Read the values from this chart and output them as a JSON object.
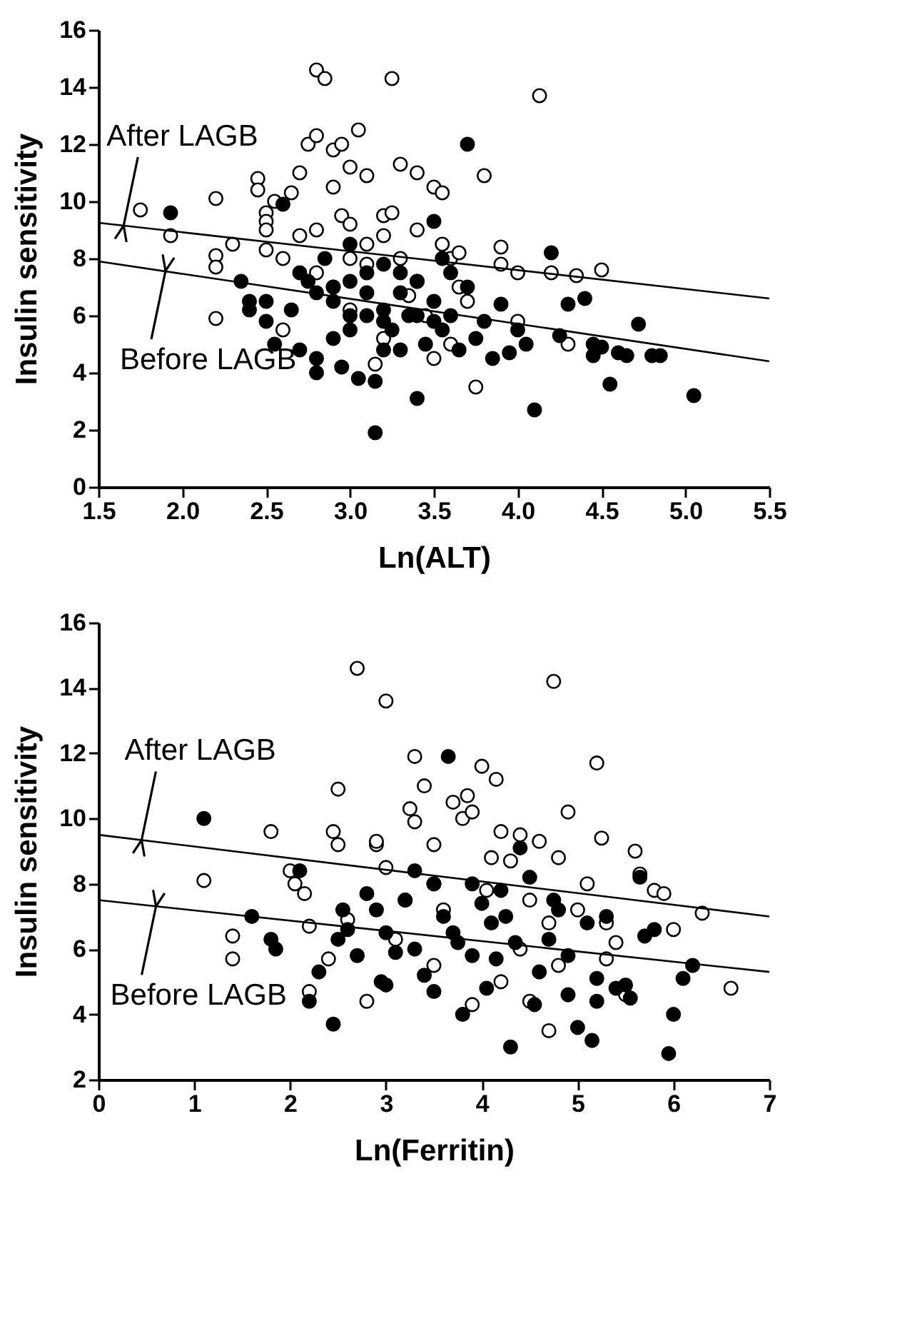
{
  "chart_data": [
    {
      "type": "scatter",
      "xlabel": "Ln(ALT)",
      "ylabel": "Insulin sensitivity",
      "xlim": [
        1.5,
        5.5
      ],
      "xticks": [
        1.5,
        {
          "value": 2,
          "label": "2.0"
        },
        2.5,
        {
          "value": 3,
          "label": "3.0"
        },
        3.5,
        {
          "value": 4,
          "label": "4.0"
        },
        4.5,
        {
          "value": 5,
          "label": "5.0"
        },
        5.5
      ],
      "ylim": [
        0,
        16
      ],
      "yticks": [
        0,
        2,
        4,
        6,
        8,
        10,
        12,
        14,
        16
      ],
      "marker": "circle",
      "series": [
        {
          "color": "#ffffff",
          "x": [
            1.75,
            1.93,
            2.2,
            2.2,
            2.2,
            2.2,
            2.3,
            2.45,
            2.45,
            2.5,
            2.5,
            2.5,
            2.5,
            2.55,
            2.6,
            2.6,
            2.65,
            2.7,
            2.75,
            2.8,
            2.8,
            2.85,
            2.9,
            2.9,
            2.95,
            2.95,
            3.0,
            3.0,
            3.05,
            3.1,
            3.1,
            3.15,
            3.2,
            3.2,
            3.25,
            3.25,
            3.3,
            3.35,
            3.4,
            3.4,
            3.5,
            3.55,
            3.55,
            3.6,
            3.65,
            3.65,
            3.7,
            3.75,
            3.8,
            3.9,
            3.9,
            4.0,
            4.0,
            4.13,
            4.2,
            4.35,
            4.5,
            2.8,
            2.9,
            3.0,
            3.1,
            3.2,
            3.3,
            3.4,
            3.45,
            3.5,
            2.7,
            2.8,
            3.0,
            3.6,
            4.3
          ],
          "values": [
            9.7,
            8.8,
            10.1,
            8.1,
            7.7,
            5.9,
            8.5,
            10.8,
            10.4,
            9.6,
            9.3,
            9.0,
            8.3,
            10.0,
            8.0,
            5.5,
            10.3,
            11.0,
            12.0,
            12.3,
            14.6,
            14.3,
            11.8,
            10.5,
            12.0,
            9.5,
            11.2,
            9.2,
            12.5,
            10.9,
            8.5,
            4.3,
            9.5,
            8.8,
            14.3,
            9.6,
            11.3,
            6.7,
            11.0,
            9.0,
            10.5,
            10.3,
            8.5,
            8.0,
            8.2,
            7.0,
            6.5,
            3.5,
            10.9,
            8.4,
            7.8,
            7.5,
            5.8,
            13.7,
            7.5,
            7.4,
            7.6,
            7.5,
            7.0,
            6.2,
            7.8,
            5.2,
            8.0,
            7.2,
            6.0,
            4.5,
            8.8,
            9.0,
            8.0,
            5.0,
            5.0
          ]
        },
        {
          "color": "#000000",
          "x": [
            1.93,
            2.35,
            2.4,
            2.4,
            2.5,
            2.5,
            2.55,
            2.6,
            2.65,
            2.7,
            2.75,
            2.8,
            2.8,
            2.85,
            2.9,
            2.9,
            2.95,
            3.0,
            3.0,
            3.0,
            3.05,
            3.1,
            3.1,
            3.15,
            3.15,
            3.2,
            3.2,
            3.25,
            3.3,
            3.3,
            3.35,
            3.4,
            3.4,
            3.45,
            3.5,
            3.5,
            3.55,
            3.55,
            3.6,
            3.65,
            3.7,
            3.7,
            3.75,
            3.8,
            3.85,
            3.9,
            3.95,
            4.0,
            4.05,
            4.1,
            4.2,
            4.25,
            4.3,
            4.4,
            4.45,
            4.5,
            4.55,
            4.6,
            4.65,
            4.72,
            4.8,
            4.85,
            5.05,
            4.45,
            3.0,
            3.1,
            3.2,
            3.3,
            2.8,
            2.7,
            3.4,
            3.6,
            3.5,
            3.2,
            2.9
          ],
          "values": [
            9.6,
            7.2,
            6.5,
            6.2,
            6.5,
            5.8,
            5.0,
            9.9,
            6.2,
            4.8,
            7.2,
            4.5,
            4.0,
            8.0,
            7.0,
            6.5,
            4.2,
            8.5,
            6.0,
            5.5,
            3.8,
            7.5,
            6.8,
            1.9,
            3.7,
            7.8,
            6.2,
            5.5,
            6.8,
            4.8,
            6.0,
            3.1,
            7.2,
            5.0,
            9.3,
            6.5,
            8.0,
            5.5,
            6.0,
            4.8,
            12.0,
            7.0,
            5.2,
            5.8,
            4.5,
            6.4,
            4.7,
            5.5,
            5.0,
            2.7,
            8.2,
            5.3,
            6.4,
            6.6,
            5.0,
            4.9,
            3.6,
            4.7,
            4.6,
            5.7,
            4.6,
            4.6,
            3.2,
            4.6,
            7.2,
            6.0,
            5.8,
            7.5,
            6.8,
            7.5,
            6.0,
            7.5,
            5.8,
            4.8,
            5.2
          ]
        },
        {
          "type": "line",
          "marker": "none",
          "color": "#000000",
          "x": [
            1.5,
            5.5
          ],
          "values": [
            9.25,
            6.6
          ]
        },
        {
          "type": "line",
          "marker": "none",
          "color": "#000000",
          "x": [
            1.5,
            5.5
          ],
          "values": [
            7.9,
            4.4
          ]
        }
      ],
      "annotations": [
        {
          "text": "After LAGB",
          "x": 1.65,
          "y": 9.15
        },
        {
          "text": "Before LAGB",
          "x": 1.9,
          "y": 7.57
        }
      ]
    },
    {
      "type": "scatter",
      "xlabel": "Ln(Ferritin)",
      "ylabel": "Insulin sensitivity",
      "xlim": [
        0,
        7
      ],
      "xticks": [
        0,
        1,
        2,
        3,
        4,
        5,
        6,
        7
      ],
      "ylim": [
        2,
        16
      ],
      "yticks": [
        2,
        4,
        6,
        8,
        10,
        12,
        14,
        16
      ],
      "marker": "circle",
      "series": [
        {
          "color": "#ffffff",
          "x": [
            1.1,
            1.4,
            1.4,
            1.8,
            2.0,
            2.05,
            2.15,
            2.2,
            2.45,
            2.5,
            2.5,
            2.6,
            2.7,
            2.8,
            2.9,
            2.9,
            3.0,
            3.0,
            3.2,
            3.25,
            3.3,
            3.3,
            3.4,
            3.5,
            3.5,
            3.7,
            3.8,
            3.85,
            3.9,
            4.0,
            4.05,
            4.1,
            4.15,
            4.2,
            4.3,
            4.4,
            4.5,
            4.6,
            4.7,
            4.75,
            4.8,
            4.9,
            5.0,
            5.1,
            5.2,
            5.25,
            5.3,
            5.4,
            5.6,
            5.65,
            5.8,
            5.9,
            6.0,
            6.3,
            6.6,
            4.5,
            4.7,
            3.9,
            3.5,
            4.2,
            5.3,
            5.5,
            3.1,
            2.4,
            2.2,
            3.6,
            4.4,
            4.8
          ],
          "values": [
            8.1,
            6.4,
            5.7,
            9.6,
            8.4,
            8.0,
            7.7,
            6.7,
            9.6,
            10.9,
            9.2,
            6.9,
            14.6,
            4.4,
            9.2,
            9.3,
            13.6,
            8.5,
            7.5,
            10.3,
            11.9,
            9.9,
            11.0,
            9.2,
            8.0,
            10.5,
            10.0,
            10.7,
            10.2,
            11.6,
            7.8,
            8.8,
            11.2,
            9.6,
            8.7,
            9.5,
            7.5,
            9.3,
            6.8,
            14.2,
            8.8,
            10.2,
            7.2,
            8.0,
            11.7,
            9.4,
            6.8,
            6.2,
            9.0,
            8.3,
            7.8,
            7.7,
            6.6,
            7.1,
            4.8,
            4.4,
            3.5,
            4.3,
            5.5,
            5.0,
            5.7,
            4.6,
            6.3,
            5.7,
            4.7,
            7.2,
            6.0,
            5.5
          ]
        },
        {
          "color": "#000000",
          "x": [
            1.1,
            1.6,
            1.8,
            1.85,
            2.1,
            2.3,
            2.45,
            2.5,
            2.55,
            2.7,
            2.8,
            2.9,
            2.95,
            3.0,
            3.1,
            3.2,
            3.3,
            3.4,
            3.5,
            3.6,
            3.65,
            3.7,
            3.8,
            3.9,
            4.0,
            4.05,
            4.1,
            4.15,
            4.2,
            4.3,
            4.35,
            4.4,
            4.5,
            4.6,
            4.7,
            4.8,
            4.9,
            5.0,
            5.1,
            5.15,
            5.2,
            5.3,
            5.4,
            5.5,
            5.55,
            5.65,
            5.7,
            5.8,
            5.95,
            6.0,
            6.1,
            6.2,
            2.2,
            3.0,
            3.5,
            4.55,
            4.9,
            5.2,
            2.6,
            3.3,
            3.9,
            4.25,
            4.75,
            3.75
          ],
          "values": [
            10.0,
            7.0,
            6.3,
            6.0,
            8.4,
            5.3,
            3.7,
            6.3,
            7.2,
            5.8,
            7.7,
            7.2,
            5.0,
            6.5,
            5.9,
            7.5,
            6.0,
            5.2,
            8.0,
            7.0,
            11.9,
            6.5,
            4.0,
            5.8,
            7.4,
            4.8,
            6.8,
            5.7,
            7.8,
            3.0,
            6.2,
            9.1,
            8.2,
            5.3,
            6.3,
            7.2,
            4.6,
            3.6,
            6.8,
            3.2,
            5.1,
            7.0,
            4.8,
            4.9,
            4.5,
            8.2,
            6.4,
            6.6,
            2.8,
            4.0,
            5.1,
            5.5,
            4.4,
            4.9,
            4.7,
            4.3,
            5.8,
            4.4,
            6.6,
            8.4,
            8.0,
            7.0,
            7.5,
            6.2
          ]
        },
        {
          "type": "line",
          "marker": "none",
          "color": "#000000",
          "x": [
            0,
            7
          ],
          "values": [
            9.5,
            7.0
          ]
        },
        {
          "type": "line",
          "marker": "none",
          "color": "#000000",
          "x": [
            0,
            7
          ],
          "values": [
            7.5,
            5.3
          ]
        }
      ],
      "annotations": [
        {
          "text": "After LAGB",
          "x": 0.45,
          "y": 9.34
        },
        {
          "text": "Before LAGB",
          "x": 0.6,
          "y": 7.31
        }
      ]
    }
  ]
}
